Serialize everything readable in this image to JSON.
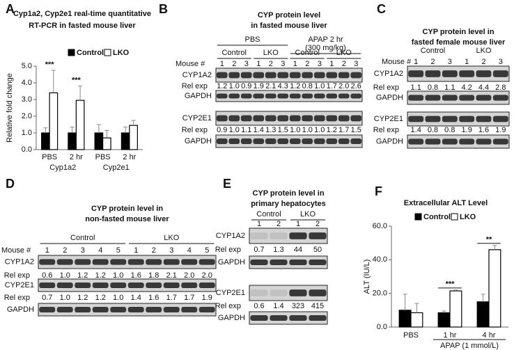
{
  "chart_data": [
    {
      "type": "bar",
      "panel": "A",
      "title": [
        "Cyp1a2, Cyp2e1 real-time quantitative",
        "RT-PCR in fasted mouse liver"
      ],
      "ylabel": "Relative fold change",
      "categories": [
        "PBS",
        "2 hr",
        "PBS",
        "2 hr"
      ],
      "groups": [
        "Cyp1a2",
        "Cyp2e1"
      ],
      "series": [
        {
          "name": "Control",
          "color": "#000000",
          "values": [
            1.0,
            1.0,
            1.0,
            1.0
          ],
          "errors": [
            0.3,
            0.35,
            0.5,
            0.35
          ]
        },
        {
          "name": "LKO",
          "color": "#ffffff",
          "values": [
            3.4,
            2.95,
            0.7,
            1.45
          ],
          "errors": [
            1.35,
            0.85,
            0.45,
            0.3
          ]
        }
      ],
      "significance": [
        "***",
        "***",
        null,
        null
      ],
      "ylim": [
        0,
        5
      ],
      "yticks": [
        {
          "value": 0,
          "label": "0.0"
        },
        {
          "value": 1,
          "label": "1.0"
        },
        {
          "value": 2,
          "label": "2.0"
        },
        {
          "value": 3,
          "label": "3.0"
        },
        {
          "value": 4,
          "label": "4.0"
        },
        {
          "value": 5,
          "label": "5.0"
        }
      ]
    },
    {
      "type": "bar",
      "panel": "F",
      "title": [
        "Extracellular ALT Level"
      ],
      "ylabel": "ALT (IU/L)",
      "categories": [
        "PBS",
        "1 hr",
        "4 hr"
      ],
      "group_label": "APAP (1 mmol/L)",
      "series": [
        {
          "name": "Control",
          "color": "#000000",
          "values": [
            10,
            8.5,
            15
          ],
          "errors": [
            9.5,
            1,
            4.5
          ]
        },
        {
          "name": "LKO",
          "color": "#ffffff",
          "values": [
            8.5,
            21.5,
            46
          ],
          "errors": [
            5.5,
            0.5,
            2.5
          ]
        }
      ],
      "significance": [
        null,
        "***",
        "**"
      ],
      "ylim": [
        0,
        60
      ],
      "yticks": [
        {
          "value": 0,
          "label": "0.0"
        },
        {
          "value": 20,
          "label": "20.0"
        },
        {
          "value": 40,
          "label": "40.0"
        },
        {
          "value": 60,
          "label": "60.0"
        }
      ]
    }
  ],
  "blots": [
    {
      "panel": "B",
      "title": [
        "CYP protein level",
        "in fasted mouse liver"
      ],
      "mouse_label": "Mouse #",
      "groups": [
        {
          "label": [
            "PBS"
          ],
          "subgroups": [
            {
              "label": "Control",
              "mice": [
                "1",
                "2",
                "3"
              ]
            },
            {
              "label": "LKO",
              "mice": [
                "1",
                "2",
                "3"
              ]
            }
          ]
        },
        {
          "label": [
            "APAP 2 hr",
            "(300 mg/kg)"
          ],
          "subgroups": [
            {
              "label": "Control",
              "mice": [
                "1",
                "2",
                "3"
              ]
            },
            {
              "label": "LKO",
              "mice": [
                "1",
                "2",
                "3"
              ]
            }
          ]
        }
      ],
      "rows": [
        {
          "label": "CYP1A2",
          "rel_label": "Rel exp",
          "rel": [
            "1.2",
            "1.0",
            "0.9",
            "1.9",
            "2.1",
            "4.3",
            "1.2",
            "0.8",
            "1.0",
            "1.7",
            "2.0",
            "2.6"
          ]
        },
        {
          "label": "GAPDH"
        },
        {
          "label": "CYP2E1",
          "rel_label": "Rel exp",
          "rel": [
            "0.9",
            "1.0",
            "1.1",
            "1.4",
            "1.3",
            "1.5",
            "1.0",
            "1.0",
            "1.0",
            "1.2",
            "1.7",
            "1.5"
          ]
        },
        {
          "label": "GAPDH"
        }
      ]
    },
    {
      "panel": "C",
      "title": [
        "CYP protein level in",
        "fasted female mouse liver"
      ],
      "mouse_label": "Mouse #",
      "groups": [
        {
          "label": "Control",
          "mice": [
            "1",
            "2",
            "3"
          ]
        },
        {
          "label": "LKO",
          "mice": [
            "1",
            "2",
            "3"
          ]
        }
      ],
      "rows": [
        {
          "label": "CYP1A2",
          "rel_label": "Rel exp",
          "rel": [
            "1.1",
            "0.8",
            "1.1",
            "4.2",
            "4.4",
            "2.8"
          ]
        },
        {
          "label": "GAPDH"
        },
        {
          "label": "CYP2E1",
          "rel_label": "Rel exp",
          "rel": [
            "1.4",
            "0.8",
            "0.8",
            "1.9",
            "1.6",
            "1.9"
          ]
        },
        {
          "label": "GAPDH"
        }
      ]
    },
    {
      "panel": "D",
      "title": [
        "CYP protein level in",
        "non-fasted mouse liver"
      ],
      "mouse_label": "Mouse #",
      "groups": [
        {
          "label": "Control",
          "mice": [
            "1",
            "2",
            "3",
            "4",
            "5"
          ]
        },
        {
          "label": "LKO",
          "mice": [
            "1",
            "2",
            "3",
            "4",
            "5"
          ]
        }
      ],
      "rows": [
        {
          "label": "CYP1A2",
          "rel_label": "Rel exp",
          "rel": [
            "0.6",
            "1.0",
            "1.2",
            "1.2",
            "1.0",
            "1.6",
            "1.8",
            "2.1",
            "2.0",
            "2.0"
          ]
        },
        {
          "label": "CYP2E1",
          "rel_label": "Rel exp",
          "rel": [
            "0.7",
            "1.0",
            "1.2",
            "1.2",
            "1.0",
            "1.4",
            "1.6",
            "1.7",
            "1.7",
            "1.9"
          ]
        },
        {
          "label": "GAPDH"
        }
      ]
    },
    {
      "panel": "E",
      "title": [
        "CYP protein level in",
        "primary hepatocytes"
      ],
      "groups": [
        {
          "label": "Control",
          "mice": [
            "1",
            "2"
          ]
        },
        {
          "label": "LKO",
          "mice": [
            "1",
            "2"
          ]
        }
      ],
      "rows": [
        {
          "label": "CYP1A2",
          "rel_label": "Rel exp",
          "rel": [
            "0.7",
            "1.3",
            "44",
            "50"
          ]
        },
        {
          "label": "GAPDH"
        },
        {
          "label": "CYP2E1",
          "rel_label": "Rel exp",
          "rel": [
            "0.6",
            "1.4",
            "323",
            "415"
          ]
        },
        {
          "label": "GAPDH"
        }
      ]
    }
  ]
}
